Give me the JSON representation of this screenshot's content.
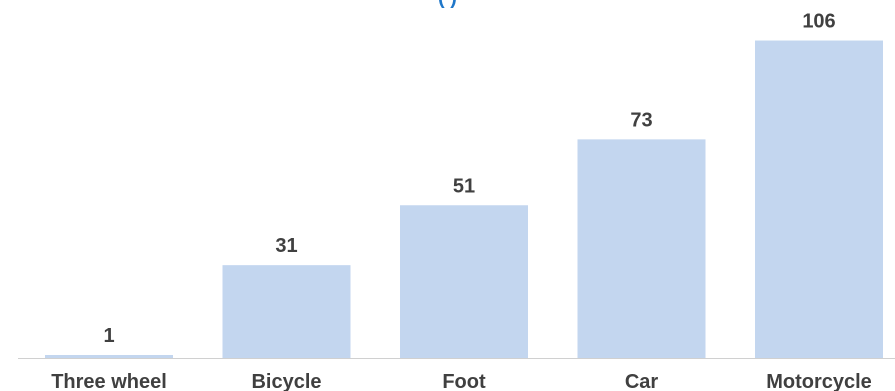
{
  "chart_data": {
    "type": "bar",
    "title": "(       )",
    "categories": [
      "Three wheel",
      "Bicycle",
      "Foot",
      "Car",
      "Motorcycle"
    ],
    "values": [
      1,
      31,
      51,
      73,
      106
    ],
    "data_labels": [
      "1",
      "31",
      "51",
      "73",
      "106"
    ],
    "xlabel": "",
    "ylabel": "",
    "ylim": [
      0,
      120
    ],
    "grid": false,
    "legend": "none",
    "colors": {
      "bar": "#c3d6ef",
      "text": "#404040",
      "axis": "#d0d0d0",
      "title": "#1f77c9"
    }
  }
}
